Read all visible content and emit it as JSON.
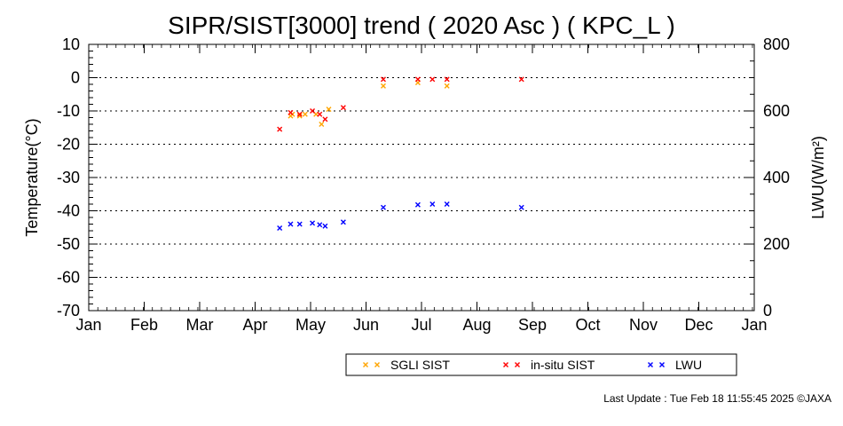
{
  "chart_data": {
    "type": "scatter",
    "title": "SIPR/SIST[3000] trend ( 2020 Asc ) ( KPC_L )",
    "xlabel": "",
    "ylabel": "Temperature(°C)",
    "y2label": "LWU(W/m²)",
    "x_tick_labels": [
      "Jan",
      "Feb",
      "Mar",
      "Apr",
      "May",
      "Jun",
      "Jul",
      "Aug",
      "Sep",
      "Oct",
      "Nov",
      "Dec",
      "Jan"
    ],
    "xlim_day_of_year": [
      1,
      367
    ],
    "ylim": [
      -70,
      10
    ],
    "y_ticks": [
      10,
      0,
      -10,
      -20,
      -30,
      -40,
      -50,
      -60,
      -70
    ],
    "y2lim": [
      0,
      800
    ],
    "y2_ticks": [
      800,
      600,
      400,
      200,
      0
    ],
    "grid": "horizontal dotted at each left-axis tick",
    "legend_position": "bottom",
    "series": [
      {
        "name": "SGLI SIST",
        "color": "#ffa500",
        "axis": "left",
        "x_day_of_year": [
          112,
          113,
          117,
          120,
          126,
          129,
          133,
          163,
          182,
          198
        ],
        "y": [
          -11.5,
          -11,
          -11.5,
          -11,
          -11,
          -14,
          -9.5,
          -2.5,
          -1.5,
          -2.5
        ]
      },
      {
        "name": "in-situ SIST",
        "color": "#ff0000",
        "axis": "left",
        "x_day_of_year": [
          106,
          112,
          117,
          124,
          128,
          131,
          141,
          163,
          182,
          190,
          198,
          239
        ],
        "y": [
          -15.5,
          -10.5,
          -11,
          -10,
          -11,
          -12.5,
          -9,
          -0.5,
          -0.5,
          -0.5,
          -0.5,
          -0.5
        ]
      },
      {
        "name": "LWU",
        "color": "#0000ff",
        "axis": "right",
        "x_day_of_year": [
          106,
          112,
          117,
          124,
          128,
          131,
          141,
          163,
          182,
          190,
          198,
          239
        ],
        "y": [
          248,
          260,
          260,
          263,
          258,
          254,
          266,
          310,
          318,
          320,
          320,
          310
        ]
      }
    ]
  },
  "footer": {
    "last_update": "Last Update : Tue Feb 18 11:55:45 2025 ©JAXA"
  }
}
